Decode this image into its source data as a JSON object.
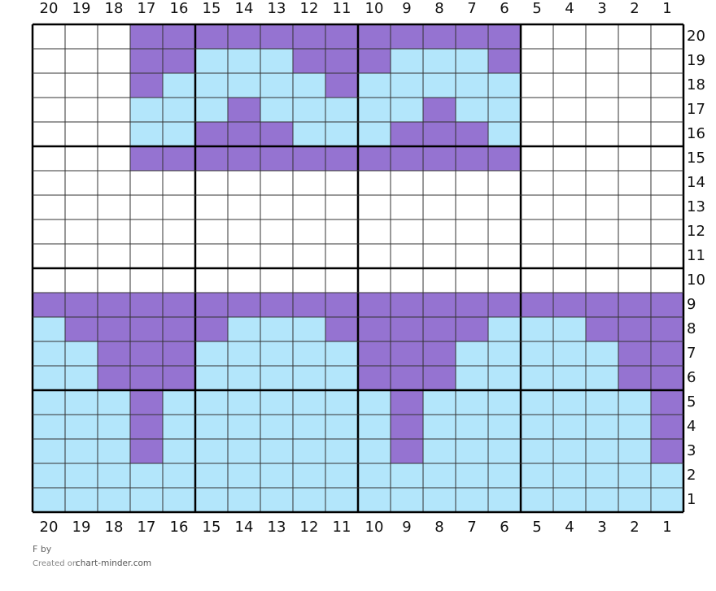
{
  "grid": {
    "column_labels": [
      20,
      19,
      18,
      17,
      16,
      15,
      14,
      13,
      12,
      11,
      10,
      9,
      8,
      7,
      6,
      5,
      4,
      3,
      2,
      1
    ],
    "row_labels": [
      20,
      19,
      18,
      17,
      16,
      15,
      14,
      13,
      12,
      11,
      10,
      9,
      8,
      7,
      6,
      5,
      4,
      3,
      2,
      1
    ],
    "palette": {
      "W": "#ffffff",
      "P": "#9573d1",
      "B": "#b3e6fb"
    },
    "rows": [
      "WWWPPPPPPPPPPPPWWWWW",
      "WWWPPBBBPPPBBBPWWWWW",
      "WWWPBBBBBPBBBBBWWWWW",
      "WWWBBBPBBBBBPBBWWWWW",
      "WWWBBPPPBBBPPPBWWWWW",
      "WWWPPPPPPPPPPPPWWWWW",
      "WWWWWWWWWWWWWWWWWWWW",
      "WWWWWWWWWWWWWWWWWWWW",
      "WWWWWWWWWWWWWWWWWWWW",
      "WWWWWWWWWWWWWWWWWWWW",
      "WWWWWWWWWWWWWWWWWWWW",
      "PPPPPPPPPPPPPPPPPPPP",
      "BPPPPPBBBPPPPPBBBPPP",
      "BBPPPBBBBBPPPBBBBBPP",
      "BBPPPBBBBBPPPBBBBBPP",
      "BBBPBBBBBBBPBBBBBBBP",
      "BBBPBBBBBBBPBBBBBBBP",
      "BBBPBBBBBBBPBBBBBBBP",
      "BBBBBBBBBBBBBBBBBBBB",
      "BBBBBBBBBBBBBBBBBBBB"
    ]
  },
  "footer": {
    "author": "F by",
    "created_prefix": "Created on",
    "site": "chart-minder.com"
  }
}
